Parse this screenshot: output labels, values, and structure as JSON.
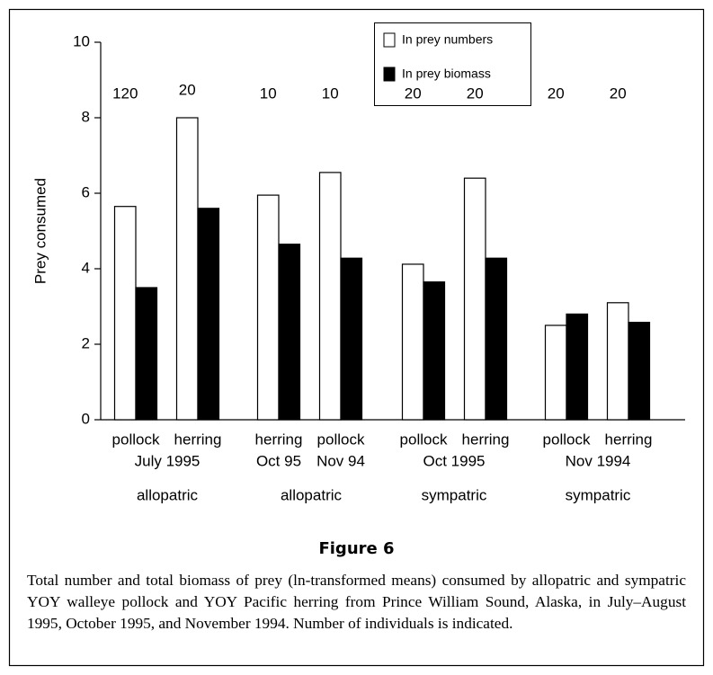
{
  "chart_data": {
    "type": "bar",
    "ylabel": "Prey consumed",
    "categories": [
      "pollock",
      "herring",
      "herring",
      "pollock",
      "pollock",
      "herring",
      "pollock",
      "herring"
    ],
    "subcategories": [
      "July 1995",
      "Oct 95",
      "Nov 94",
      "Oct 1995",
      "Nov 1994"
    ],
    "groups": [
      "allopatric",
      "allopatric",
      "sympatric",
      "sympatric"
    ],
    "series": [
      {
        "name": "In prey numbers",
        "color": "#ffffff",
        "values": [
          5.65,
          8.0,
          5.95,
          6.55,
          4.12,
          6.4,
          2.5,
          3.1
        ]
      },
      {
        "name": "In prey biomass",
        "color": "#000000",
        "values": [
          3.5,
          5.6,
          4.65,
          4.28,
          3.65,
          4.28,
          2.8,
          2.58
        ]
      }
    ],
    "sample_sizes": [
      120,
      20,
      10,
      10,
      20,
      20,
      20,
      20
    ],
    "ylim": [
      0,
      10
    ],
    "yticks": [
      0,
      2,
      4,
      6,
      8,
      10
    ],
    "legend": "top-center"
  },
  "figure": {
    "label": "Figure 6",
    "caption": "Total number and total biomass of prey (ln-transformed means) consumed by allopatric and sympatric YOY walleye pollock and YOY Pacific herring from Prince William Sound, Alaska, in July–August 1995, October 1995, and November 1994. Number of individuals is indicated."
  }
}
